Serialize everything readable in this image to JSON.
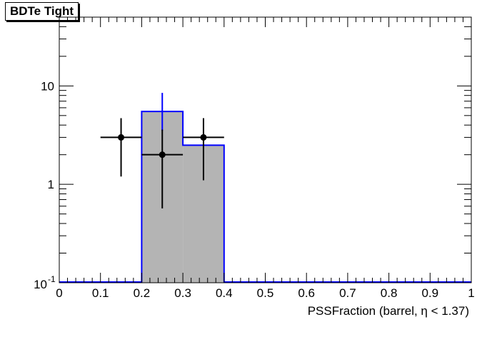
{
  "chart_data": {
    "type": "bar",
    "title": "BDTe Tight",
    "xlabel": "PSSFraction (barrel,  η < 1.37)",
    "ylabel": "",
    "xlim": [
      0,
      1
    ],
    "ylim": [
      0.1,
      50
    ],
    "y_scale": "log",
    "grid": false,
    "x_tick_labels": [
      "0",
      "0.1",
      "0.2",
      "0.3",
      "0.4",
      "0.5",
      "0.6",
      "0.7",
      "0.8",
      "0.9",
      "1"
    ],
    "y_tick_labels": [
      {
        "value": 0.1,
        "base": "10",
        "exp": "-1"
      },
      {
        "value": 1,
        "label": "1"
      },
      {
        "value": 10,
        "label": "10"
      }
    ],
    "histogram": {
      "bin_edges": [
        0.2,
        0.3,
        0.4
      ],
      "values": [
        5.5,
        2.5
      ],
      "errors_up": [
        3.0,
        0.0
      ],
      "errors_down": [
        2.0,
        0.0
      ],
      "fill_color": "#b4b4b4",
      "line_color": "#0000ff"
    },
    "points": {
      "x": [
        0.15,
        0.25,
        0.35
      ],
      "y": [
        3.0,
        2.0,
        3.0
      ],
      "x_err": [
        0.05,
        0.05,
        0.05
      ],
      "y_err_low": [
        1.8,
        1.43,
        1.9
      ],
      "y_err_high": [
        1.7,
        1.6,
        1.7
      ],
      "color": "#000000"
    }
  }
}
